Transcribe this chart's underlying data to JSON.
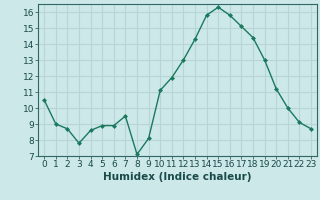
{
  "x": [
    0,
    1,
    2,
    3,
    4,
    5,
    6,
    7,
    8,
    9,
    10,
    11,
    12,
    13,
    14,
    15,
    16,
    17,
    18,
    19,
    20,
    21,
    22,
    23
  ],
  "y": [
    10.5,
    9.0,
    8.7,
    7.8,
    8.6,
    8.9,
    8.9,
    9.5,
    7.1,
    8.1,
    11.1,
    11.9,
    13.0,
    14.3,
    15.8,
    16.3,
    15.8,
    15.1,
    14.4,
    13.0,
    11.2,
    10.0,
    9.1,
    8.7
  ],
  "line_color": "#1a7a5e",
  "marker": "D",
  "marker_size": 2,
  "bg_color": "#cce8e8",
  "grid_color": "#b8d4d4",
  "xlabel": "Humidex (Indice chaleur)",
  "ylim": [
    7,
    16.5
  ],
  "xlim": [
    -0.5,
    23.5
  ],
  "yticks": [
    7,
    8,
    9,
    10,
    11,
    12,
    13,
    14,
    15,
    16
  ],
  "xticks": [
    0,
    1,
    2,
    3,
    4,
    5,
    6,
    7,
    8,
    9,
    10,
    11,
    12,
    13,
    14,
    15,
    16,
    17,
    18,
    19,
    20,
    21,
    22,
    23
  ],
  "tick_label_size": 6.5,
  "xlabel_size": 7.5,
  "line_width": 1.0
}
